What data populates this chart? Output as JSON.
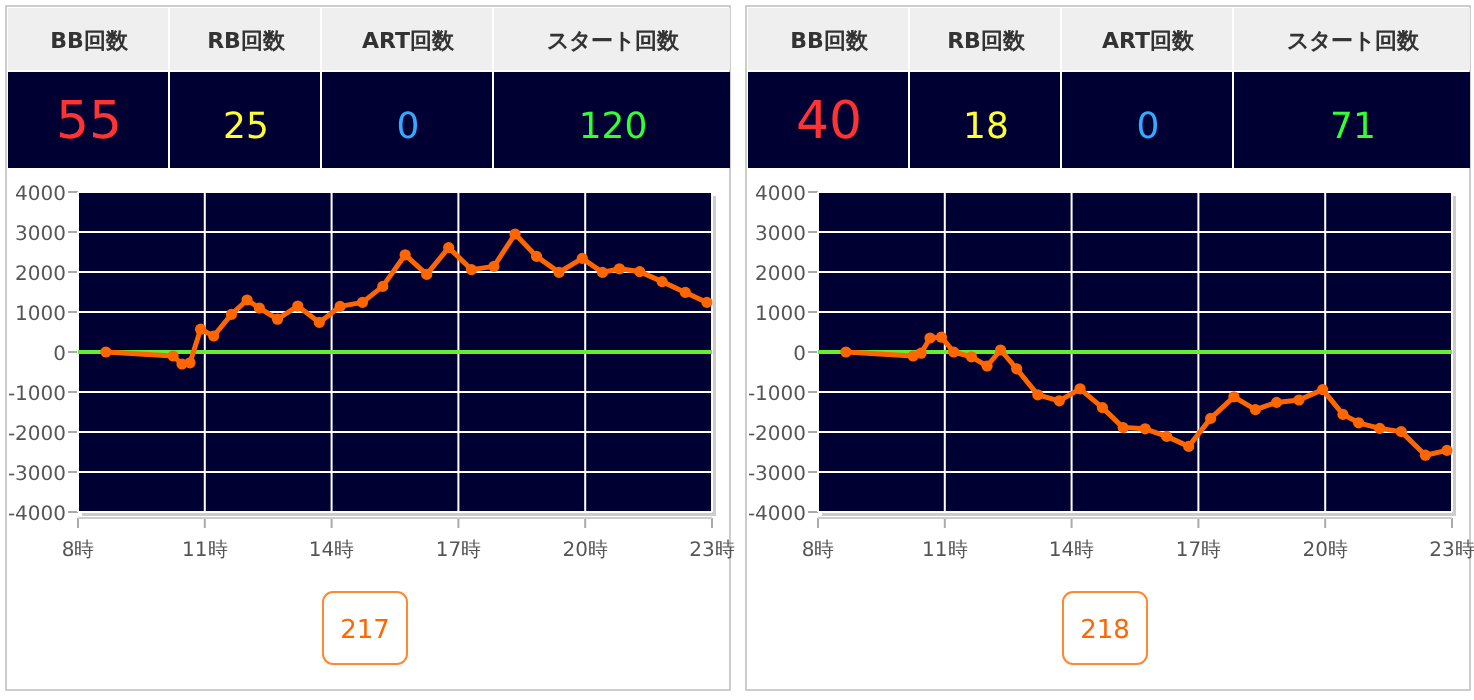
{
  "chart_data": [
    {
      "type": "other",
      "categories": [
        "BB回数",
        "RB回数",
        "ART回数",
        "スタート回数"
      ],
      "values": [
        55,
        25,
        0,
        120
      ],
      "data_labels": true
    },
    {
      "type": "line",
      "x": [
        8.66,
        10.25,
        10.46,
        10.65,
        10.9,
        11.21,
        11.63,
        12.0,
        12.29,
        12.72,
        13.2,
        13.71,
        14.2,
        14.73,
        15.21,
        15.74,
        16.25,
        16.77,
        17.31,
        17.84,
        18.34,
        18.85,
        19.38,
        19.93,
        20.41,
        20.81,
        21.29,
        21.82,
        22.37,
        22.88
      ],
      "series": [
        {
          "color": "#ff6600",
          "values": [
            0,
            -100,
            -300,
            -270,
            570,
            400,
            940,
            1300,
            1100,
            820,
            1150,
            740,
            1140,
            1240,
            1640,
            2430,
            1940,
            2610,
            2060,
            2140,
            2950,
            2390,
            1990,
            2340,
            1990,
            2080,
            2010,
            1760,
            1490,
            1240
          ]
        }
      ],
      "xlim": [
        8,
        23
      ],
      "xticks": [
        {
          "value": 8,
          "label": "8時"
        },
        {
          "value": 11,
          "label": "11時"
        },
        {
          "value": 14,
          "label": "14時"
        },
        {
          "value": 17,
          "label": "17時"
        },
        {
          "value": 20,
          "label": "20時"
        },
        {
          "value": 23,
          "label": "23時"
        }
      ],
      "ylim": [
        -4000,
        4000
      ],
      "yticks": [
        -4000,
        -3000,
        -2000,
        -1000,
        0,
        1000,
        2000,
        3000,
        4000
      ],
      "grid": true,
      "marker": "circle",
      "line_style": "solid",
      "ref_lines": [
        {
          "axis": "y",
          "value": 0,
          "color": "#66ee33"
        }
      ],
      "annotations": [
        "217"
      ]
    },
    {
      "type": "other",
      "categories": [
        "BB回数",
        "RB回数",
        "ART回数",
        "スタート回数"
      ],
      "values": [
        40,
        18,
        0,
        71
      ],
      "data_labels": true
    },
    {
      "type": "line",
      "x": [
        8.66,
        10.25,
        10.44,
        10.65,
        10.92,
        11.21,
        11.63,
        12.0,
        12.32,
        12.7,
        13.2,
        13.71,
        14.2,
        14.73,
        15.22,
        15.74,
        16.25,
        16.77,
        17.29,
        17.84,
        18.35,
        18.85,
        19.38,
        19.94,
        20.42,
        20.79,
        21.29,
        21.8,
        22.37,
        22.88
      ],
      "series": [
        {
          "color": "#ff6600",
          "values": [
            0,
            -100,
            -30,
            350,
            370,
            0,
            -120,
            -350,
            50,
            -420,
            -1070,
            -1220,
            -920,
            -1390,
            -1890,
            -1920,
            -2110,
            -2360,
            -1660,
            -1120,
            -1440,
            -1260,
            -1200,
            -940,
            -1560,
            -1770,
            -1910,
            -1990,
            -2580,
            -2460
          ]
        }
      ],
      "xlim": [
        8,
        23
      ],
      "xticks": [
        {
          "value": 8,
          "label": "8時"
        },
        {
          "value": 11,
          "label": "11時"
        },
        {
          "value": 14,
          "label": "14時"
        },
        {
          "value": 17,
          "label": "17時"
        },
        {
          "value": 20,
          "label": "20時"
        },
        {
          "value": 23,
          "label": "23時"
        }
      ],
      "ylim": [
        -4000,
        4000
      ],
      "yticks": [
        -4000,
        -3000,
        -2000,
        -1000,
        0,
        1000,
        2000,
        3000,
        4000
      ],
      "grid": true,
      "marker": "circle",
      "line_style": "solid",
      "ref_lines": [
        {
          "axis": "y",
          "value": 0,
          "color": "#66ee33"
        }
      ],
      "annotations": [
        "218"
      ]
    }
  ]
}
